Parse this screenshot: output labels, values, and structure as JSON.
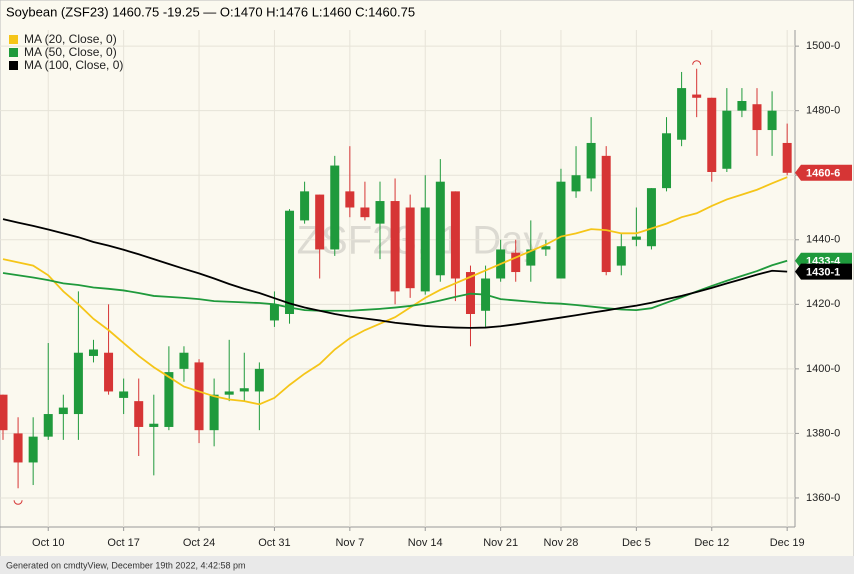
{
  "chart_data": {
    "type": "candlestick",
    "title": "Soybean (ZSF23) 1460.75 -19.25 — O:1470 H:1476 L:1460 C:1460.75",
    "watermark": "ZSF23, 1 Day",
    "footer": "Generated on cmdtyView, December 19th 2022, 4:42:58 pm",
    "categories": [
      null,
      null,
      null,
      "Oct 10",
      null,
      null,
      null,
      null,
      "Oct 17",
      null,
      null,
      null,
      null,
      "Oct 24",
      null,
      null,
      null,
      null,
      "Oct 31",
      null,
      null,
      null,
      null,
      "Nov 7",
      null,
      null,
      null,
      null,
      "Nov 14",
      null,
      null,
      null,
      null,
      "Nov 21",
      null,
      null,
      null,
      "Nov 28",
      null,
      null,
      null,
      null,
      "Dec 5",
      null,
      null,
      null,
      null,
      "Dec 12",
      null,
      null,
      null,
      null,
      "Dec 19"
    ],
    "candles": {
      "up_color": "#1f9a3c",
      "down_color": "#d63535",
      "last_label": "1460-6",
      "open": [
        1392,
        1380,
        1371,
        1379,
        1386,
        1386,
        1404,
        1405,
        1391,
        1390,
        1382,
        1382,
        1400,
        1402,
        1381,
        1392,
        1393,
        1393,
        1415,
        1417,
        1446,
        1454,
        1437,
        1455,
        1450,
        1445,
        1452,
        1450,
        1424,
        1429,
        1455,
        1430,
        1418,
        1428,
        1436,
        1432,
        1437,
        1428,
        1455,
        1459,
        1466,
        1432,
        1440,
        1438,
        1456,
        1471,
        1485,
        1484,
        1462,
        1480,
        1482,
        1474,
        1470
      ],
      "high": [
        1392,
        1385,
        1385,
        1408,
        1392,
        1424,
        1409,
        1420,
        1397,
        1397,
        1392,
        1407,
        1407,
        1403,
        1397,
        1409,
        1405,
        1402,
        1424,
        1449.5,
        1458,
        1454,
        1466,
        1469,
        1458,
        1458,
        1459,
        1454,
        1460,
        1465,
        1455,
        1432,
        1432,
        1440,
        1440,
        1446,
        1440,
        1462,
        1469,
        1478,
        1469,
        1442,
        1450,
        1456,
        1478,
        1492,
        1493,
        1484,
        1487,
        1487,
        1487,
        1486,
        1476
      ],
      "low": [
        1378,
        1363,
        1364,
        1378,
        1378,
        1378,
        1402,
        1392,
        1386,
        1373,
        1367,
        1381,
        1396,
        1377,
        1376,
        1390,
        1390,
        1381,
        1413,
        1414,
        1445,
        1428,
        1435,
        1447,
        1446,
        1434,
        1420,
        1422,
        1423,
        1427,
        1421,
        1407,
        1413,
        1427,
        1427,
        1427,
        1435,
        1428,
        1453,
        1455,
        1429,
        1429,
        1438,
        1437,
        1455,
        1469,
        1478,
        1458,
        1461,
        1478,
        1466,
        1466,
        1460
      ],
      "close": [
        1381,
        1371,
        1379,
        1386,
        1388,
        1405,
        1406,
        1393,
        1393,
        1382,
        1383,
        1399,
        1405,
        1381,
        1392,
        1393,
        1394,
        1400,
        1420,
        1449,
        1455,
        1437,
        1463,
        1450,
        1447,
        1452,
        1424,
        1425,
        1450,
        1458,
        1428,
        1417,
        1428,
        1437,
        1430,
        1437,
        1438,
        1458,
        1460,
        1470,
        1430,
        1438,
        1441,
        1456,
        1473,
        1487,
        1484,
        1461,
        1480,
        1483,
        1474,
        1480,
        1460.75
      ]
    },
    "series": [
      {
        "name": "MA (20, Close, 0)",
        "color": "#f5c518",
        "values": [
          1434,
          1433,
          1432,
          1429,
          1424,
          1420,
          1415.5,
          1412,
          1408,
          1404,
          1400.5,
          1397.5,
          1394.5,
          1393,
          1391.5,
          1390.5,
          1390,
          1389,
          1391,
          1395,
          1398.5,
          1401.5,
          1406,
          1409.5,
          1412,
          1414,
          1416,
          1419,
          1422,
          1424.5,
          1426.5,
          1428.5,
          1430.5,
          1432.5,
          1434.5,
          1436.5,
          1438.5,
          1441,
          1442,
          1443.3,
          1443,
          1442,
          1442,
          1443.5,
          1445,
          1447,
          1448.2,
          1450.5,
          1452.5,
          1454,
          1455.5,
          1457.5,
          1459.4
        ]
      },
      {
        "name": "MA (50, Close, 0)",
        "color": "#1f9a3c",
        "last_label": "1433-4",
        "values": [
          1429.7,
          1429,
          1428.3,
          1427.5,
          1426.5,
          1426,
          1425.2,
          1424.8,
          1424.3,
          1423.5,
          1422.6,
          1422.3,
          1422,
          1421.6,
          1421,
          1420.8,
          1420.6,
          1420.4,
          1420,
          1419,
          1418.2,
          1418,
          1418,
          1418,
          1418.3,
          1418.6,
          1419,
          1419.5,
          1420.2,
          1421.2,
          1422.3,
          1423.3,
          1423,
          1421.6,
          1421.2,
          1420.8,
          1420.4,
          1420.2,
          1419.8,
          1419.3,
          1418.8,
          1418.4,
          1418.2,
          1418.8,
          1420.5,
          1422.2,
          1424,
          1425.7,
          1427.3,
          1428.8,
          1430.3,
          1432.1,
          1433.5
        ]
      },
      {
        "name": "MA (100, Close, 0)",
        "color": "#000000",
        "last_label": "1430-1",
        "values": [
          1446.4,
          1445.3,
          1444.3,
          1443.2,
          1442,
          1440.8,
          1439.3,
          1438.2,
          1436.9,
          1435.5,
          1434,
          1432.5,
          1431,
          1429.6,
          1428,
          1426.3,
          1424.8,
          1423.5,
          1421.9,
          1420.3,
          1419,
          1418,
          1417,
          1416.2,
          1415.6,
          1415,
          1414.3,
          1413.8,
          1413.3,
          1413,
          1412.8,
          1412.7,
          1412.8,
          1413.2,
          1413.8,
          1414.5,
          1415.2,
          1415.9,
          1416.6,
          1417.4,
          1418.1,
          1418.9,
          1419.6,
          1420.5,
          1421.6,
          1422.6,
          1423.8,
          1425.1,
          1426.5,
          1427.8,
          1429.2,
          1430.4,
          1430.125
        ]
      }
    ],
    "ylim": [
      1351,
      1505
    ],
    "yticks": [
      {
        "value": 1360,
        "label": "1360-0"
      },
      {
        "value": 1380,
        "label": "1380-0"
      },
      {
        "value": 1400,
        "label": "1400-0"
      },
      {
        "value": 1420,
        "label": "1420-0"
      },
      {
        "value": 1440,
        "label": "1440-0"
      },
      {
        "value": 1460,
        "label": "1460-0"
      },
      {
        "value": 1480,
        "label": "1480-0"
      },
      {
        "value": 1500,
        "label": "1500-0"
      }
    ],
    "grid": true
  }
}
